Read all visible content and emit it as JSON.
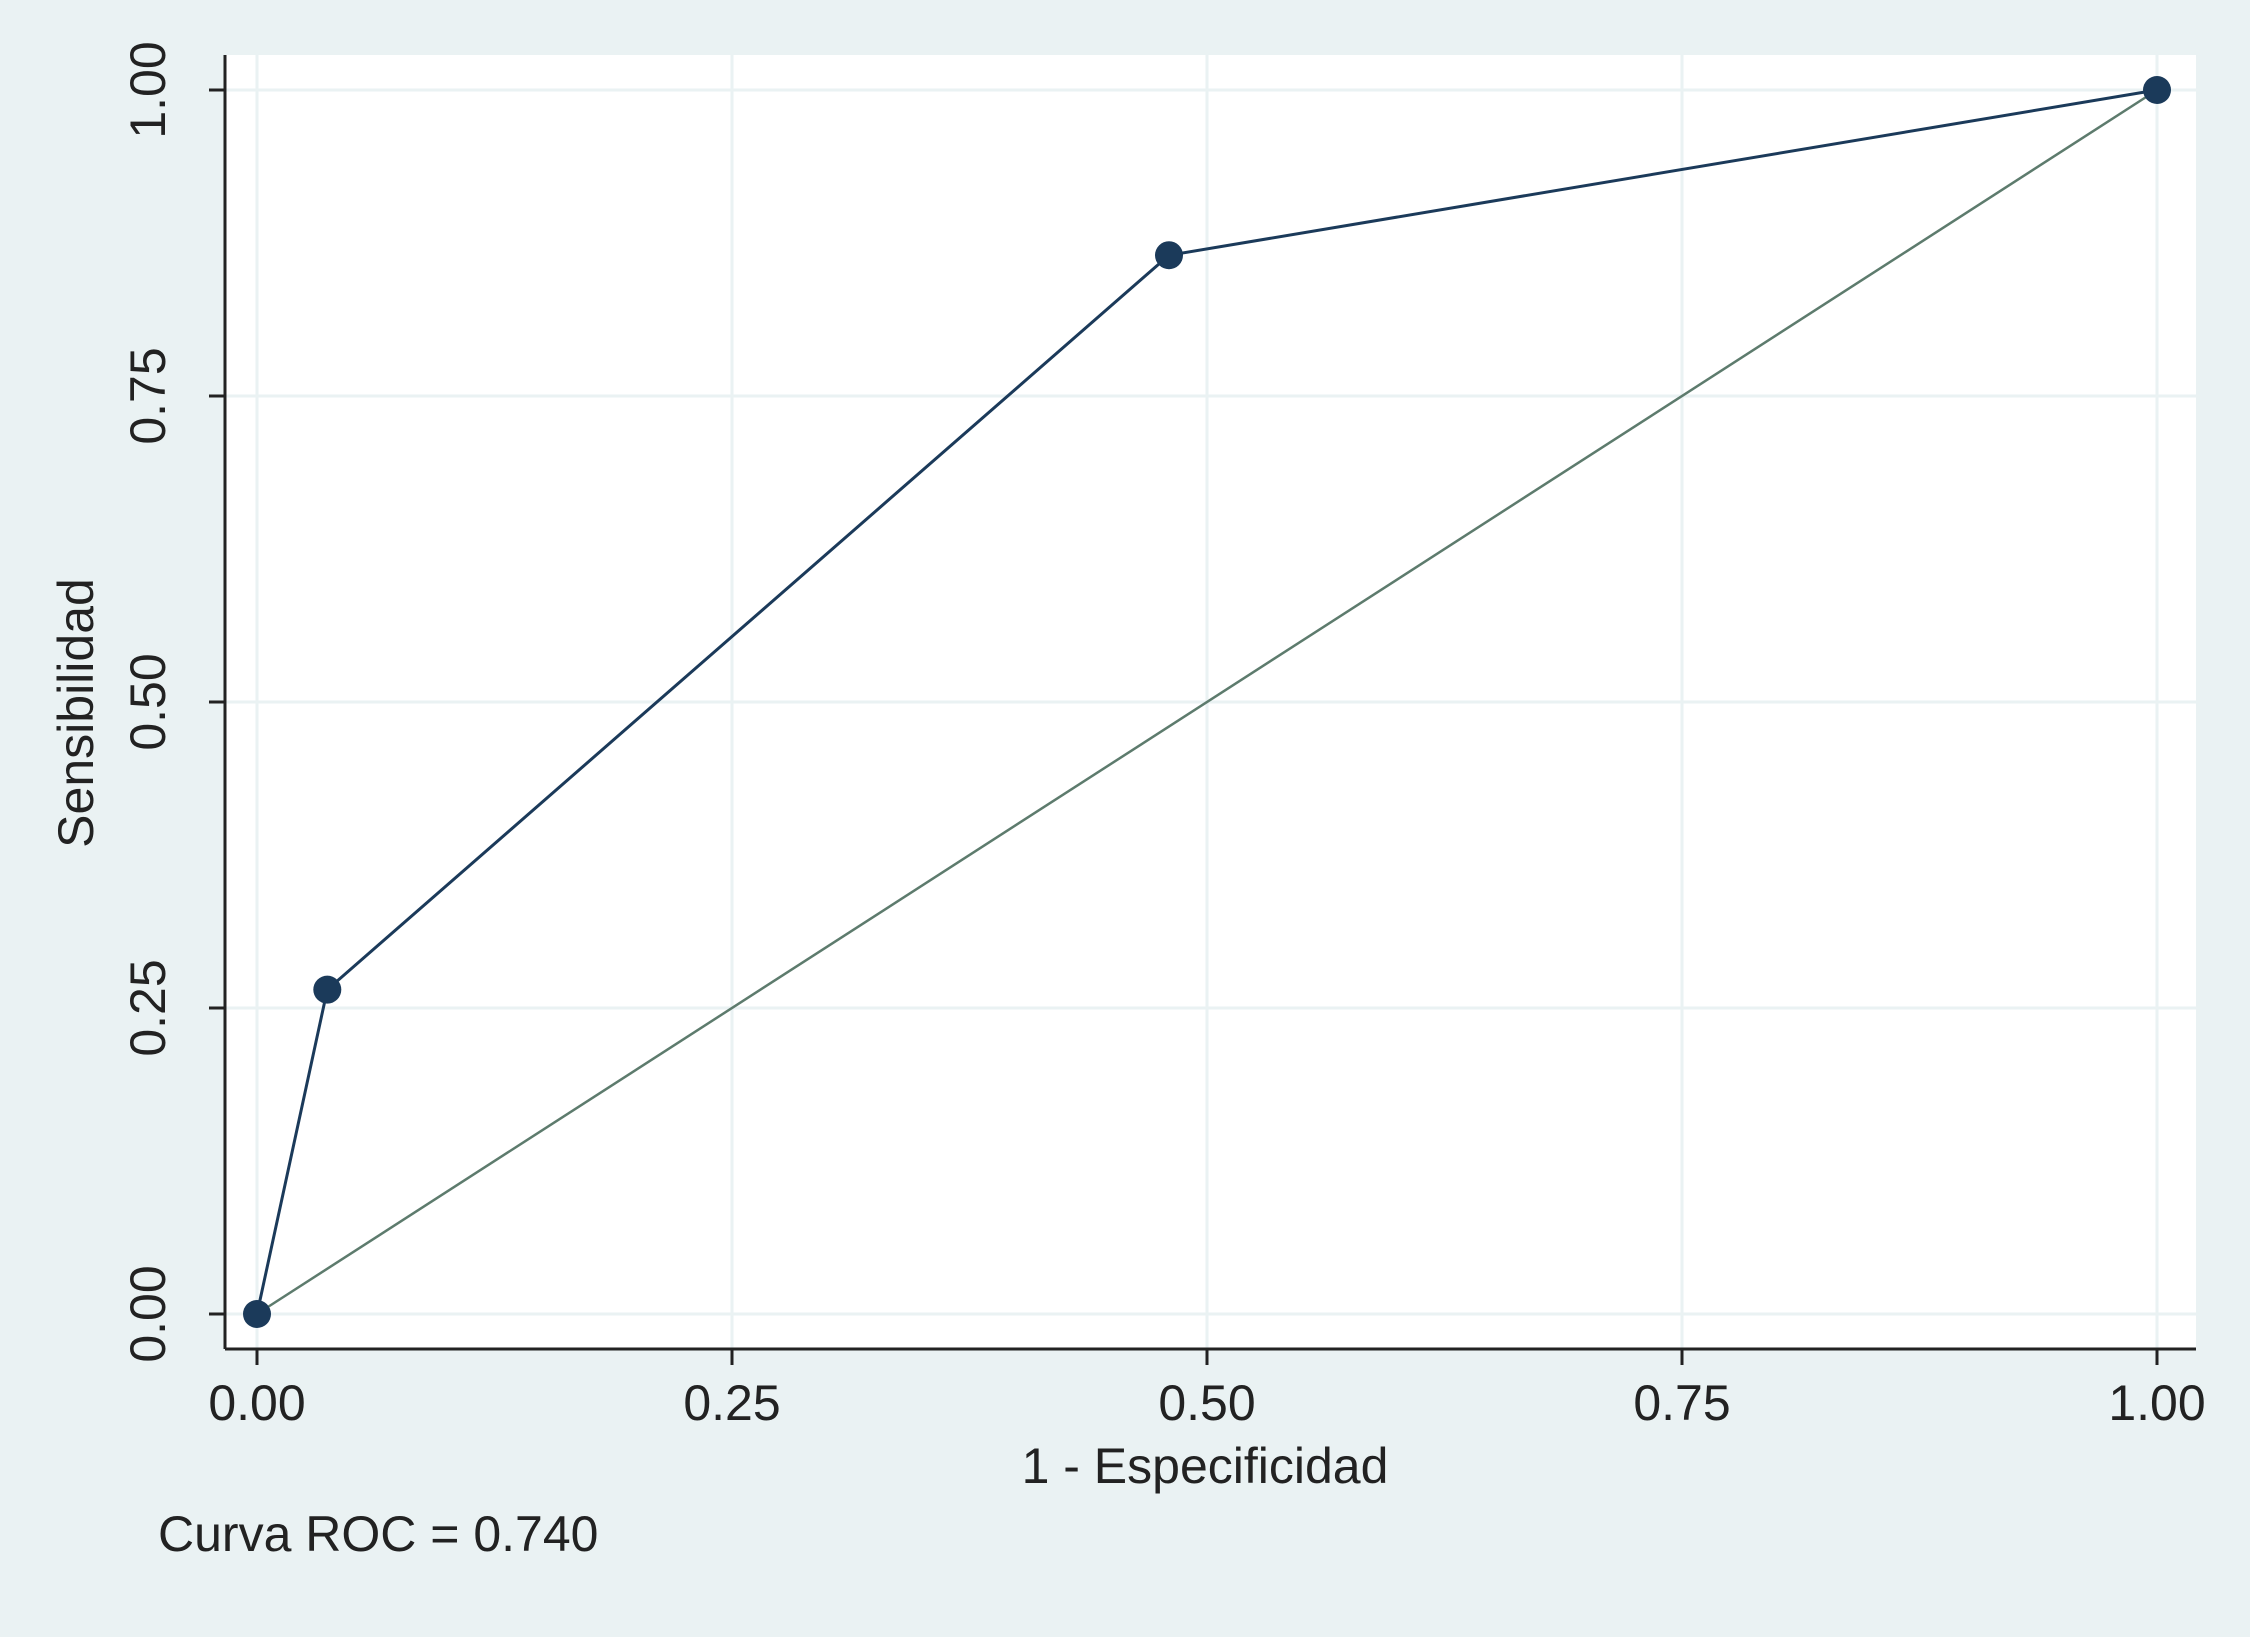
{
  "chart_data": {
    "type": "line",
    "x": [
      0,
      0.037,
      0.48,
      1
    ],
    "values": [
      0,
      0.265,
      0.865,
      1
    ],
    "color": "#1b3a5a",
    "markers": true,
    "diagonal": true,
    "diagonal_color": "#5d7b6d",
    "xlabel": "1 - Especificidad",
    "ylabel": "Sensibilidad",
    "note": "Curva ROC = 0.740",
    "xlim": [
      0,
      1
    ],
    "ylim": [
      0,
      1
    ],
    "xticks": [
      {
        "value": 0,
        "label": "0.00"
      },
      {
        "value": 0.25,
        "label": "0.25"
      },
      {
        "value": 0.5,
        "label": "0.50"
      },
      {
        "value": 0.75,
        "label": "0.75"
      },
      {
        "value": 1,
        "label": "1.00"
      }
    ],
    "yticks": [
      {
        "value": 0,
        "label": "0.00"
      },
      {
        "value": 0.25,
        "label": "0.25"
      },
      {
        "value": 0.5,
        "label": "0.50"
      },
      {
        "value": 0.75,
        "label": "0.75"
      },
      {
        "value": 1,
        "label": "1.00"
      }
    ],
    "grid": true
  }
}
